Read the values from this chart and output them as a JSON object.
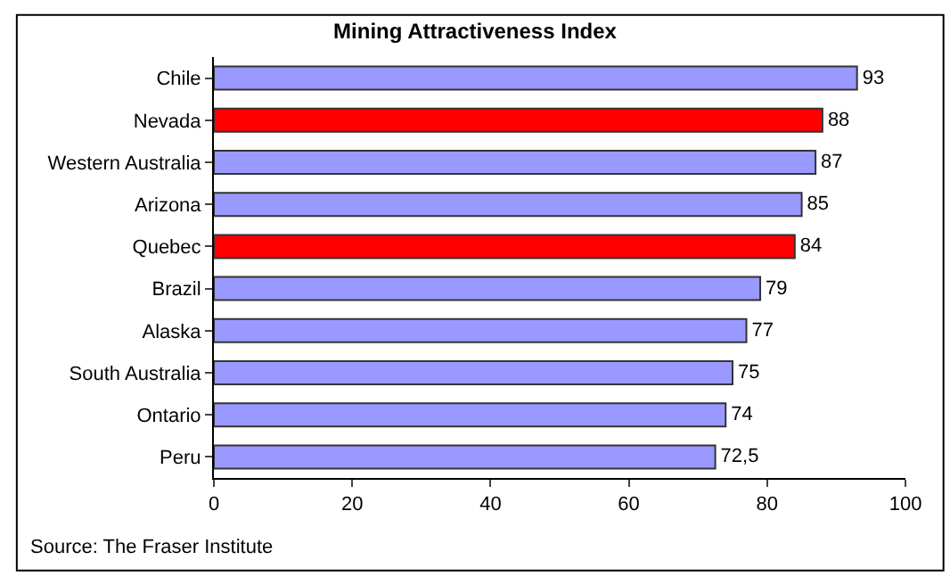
{
  "chart_data": {
    "type": "bar",
    "orientation": "horizontal",
    "title": "Mining Attractiveness Index",
    "categories": [
      "Chile",
      "Nevada",
      "Western Australia",
      "Arizona",
      "Quebec",
      "Brazil",
      "Alaska",
      "South Australia",
      "Ontario",
      "Peru"
    ],
    "values": [
      93,
      88,
      87,
      85,
      84,
      79,
      77,
      75,
      74,
      72.5
    ],
    "colors": [
      "#9999ff",
      "#ff0000",
      "#9999ff",
      "#9999ff",
      "#ff0000",
      "#9999ff",
      "#9999ff",
      "#9999ff",
      "#9999ff",
      "#9999ff"
    ],
    "value_labels": [
      "93",
      "88",
      "87",
      "85",
      "84",
      "79",
      "77",
      "75",
      "74",
      "72,5"
    ],
    "xlim": [
      0,
      100
    ],
    "xticks": [
      0,
      20,
      40,
      60,
      80,
      100
    ],
    "annotations": [
      "Source: The Fraser Institute"
    ]
  }
}
